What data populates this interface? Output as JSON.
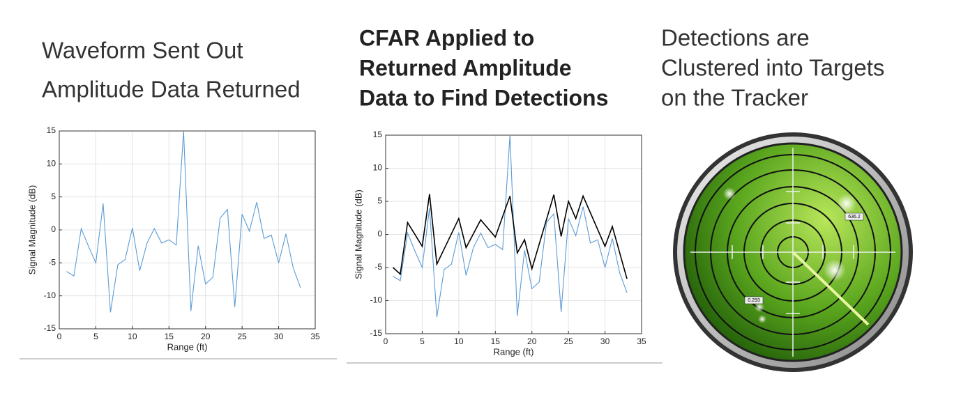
{
  "headings": {
    "left": [
      "Waveform Sent Out",
      "Amplitude Data Returned"
    ],
    "middle": [
      "CFAR Applied to",
      "Returned Amplitude",
      "Data to Find Detections"
    ],
    "right": [
      "Detections are",
      "Clustered into Targets",
      "on the Tracker"
    ]
  },
  "radar": {
    "labels": [
      "636.2",
      "0.293"
    ]
  },
  "chart_data": [
    {
      "type": "line",
      "xlabel": "Range (ft)",
      "ylabel": "Signal Magnitude (dB)",
      "xlim": [
        0,
        35
      ],
      "xticks": [
        0,
        5,
        10,
        15,
        20,
        25,
        30,
        35
      ],
      "ylim": [
        -15,
        15
      ],
      "yticks": [
        -15,
        -10,
        -5,
        0,
        5,
        10,
        15
      ],
      "grid": true,
      "series": [
        {
          "color": "#5b9bd5",
          "x": [
            1,
            2,
            3,
            4,
            5,
            6,
            7,
            8,
            9,
            10,
            11,
            12,
            13,
            14,
            15,
            16,
            17,
            18,
            19,
            20,
            21,
            22,
            23,
            24,
            25,
            26,
            27,
            28,
            29,
            30,
            31,
            32,
            33
          ],
          "values": [
            -6.3,
            -7,
            0.2,
            -2.5,
            -5,
            4,
            -12.5,
            -5.3,
            -4.5,
            0.3,
            -6.2,
            -2,
            0.2,
            -2,
            -1.5,
            -2.3,
            15,
            -12.3,
            -2.4,
            -8.2,
            -7.2,
            1.8,
            3.1,
            -11.7,
            2.4,
            -0.2,
            4.2,
            -1.3,
            -0.8,
            -5,
            -0.6,
            -5.8,
            -8.8
          ]
        }
      ]
    },
    {
      "type": "line",
      "xlabel": "Range (ft)",
      "ylabel": "Signal Magnitude (dB)",
      "xlim": [
        0,
        35
      ],
      "xticks": [
        0,
        5,
        10,
        15,
        20,
        25,
        30,
        35
      ],
      "ylim": [
        -15,
        15
      ],
      "yticks": [
        -15,
        -10,
        -5,
        0,
        5,
        10,
        15
      ],
      "grid": true,
      "series": [
        {
          "color": "#5b9bd5",
          "x": [
            1,
            2,
            3,
            4,
            5,
            6,
            7,
            8,
            9,
            10,
            11,
            12,
            13,
            14,
            15,
            16,
            17,
            18,
            19,
            20,
            21,
            22,
            23,
            24,
            25,
            26,
            27,
            28,
            29,
            30,
            31,
            32,
            33
          ],
          "values": [
            -6.3,
            -7,
            0.2,
            -2.5,
            -5,
            4,
            -12.5,
            -5.3,
            -4.5,
            0.3,
            -6.2,
            -2,
            0.2,
            -2,
            -1.5,
            -2.3,
            15,
            -12.3,
            -2.4,
            -8.2,
            -7.2,
            1.8,
            3.1,
            -11.7,
            2.4,
            -0.2,
            4.2,
            -1.3,
            -0.8,
            -5,
            -0.6,
            -5.8,
            -8.8
          ]
        },
        {
          "color": "#000000",
          "x": [
            1,
            2,
            3,
            5,
            6,
            7,
            10,
            11,
            13,
            15,
            17,
            18,
            19,
            20,
            23,
            24,
            25,
            26,
            27,
            30,
            31,
            33
          ],
          "values": [
            -5,
            -6,
            1.8,
            -1.8,
            6.1,
            -4.5,
            2.4,
            -2,
            2.2,
            -0.4,
            5.8,
            -2.8,
            -0.8,
            -5.2,
            6,
            -0.3,
            5,
            2.4,
            5.8,
            -1.8,
            1.2,
            -6.7
          ]
        }
      ]
    }
  ]
}
